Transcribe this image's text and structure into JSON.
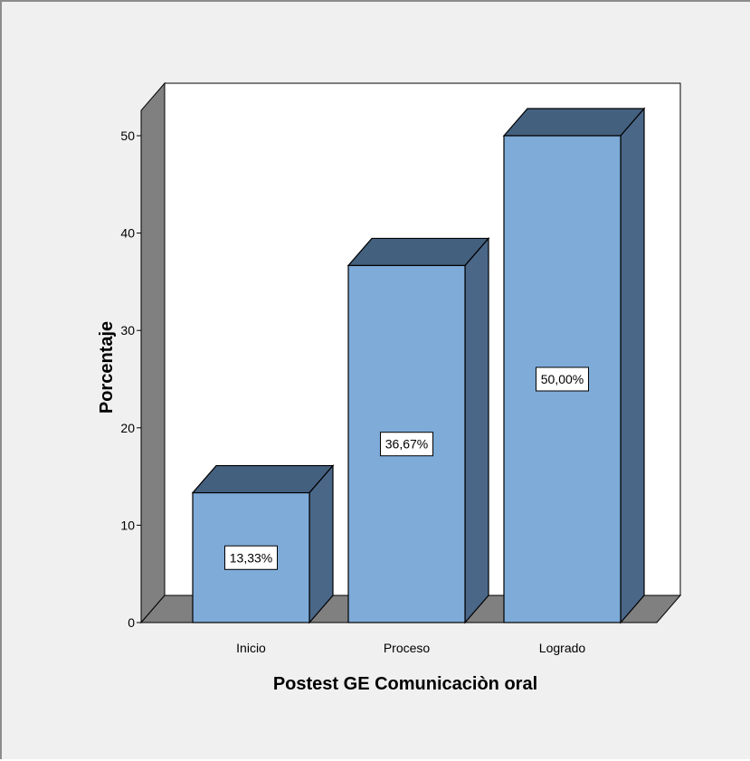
{
  "chart_data": {
    "type": "bar",
    "categories": [
      "Inicio",
      "Proceso",
      "Logrado"
    ],
    "values": [
      13.33,
      36.67,
      50.0
    ],
    "data_labels": [
      "13,33%",
      "36,67%",
      "50,00%"
    ],
    "title": "",
    "xlabel": "Postest GE Comunicaciòn oral",
    "ylabel": "Porcentaje",
    "ylim": [
      0,
      50
    ],
    "yticks": [
      0,
      10,
      20,
      30,
      40,
      50
    ],
    "three_d": true,
    "grid": false,
    "legend": "none",
    "colors": {
      "bar_front": "#7eabd8",
      "bar_top": "#44607f",
      "bar_side": "#4a6788",
      "wall": "#808080",
      "floor": "#808080",
      "plot_background": "#ffffff",
      "chart_background": "#f0f0f0"
    }
  }
}
